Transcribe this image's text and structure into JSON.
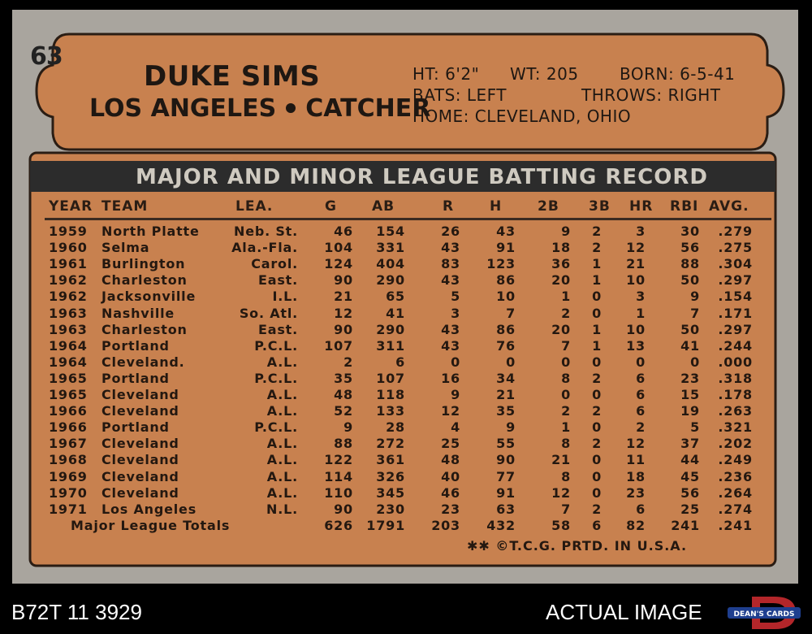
{
  "card": {
    "number": "63",
    "name": "DUKE SIMS",
    "team": "LOS ANGELES",
    "position": "CATCHER",
    "bio": {
      "ht": "HT: 6'2\"",
      "wt": "WT: 205",
      "born": "BORN: 6-5-41",
      "bats": "BATS: LEFT",
      "throws": "THROWS: RIGHT",
      "home": "HOME: CLEVELAND, OHIO"
    },
    "banner": "MAJOR AND MINOR LEAGUE BATTING RECORD",
    "columns": [
      "YEAR",
      "TEAM",
      "LEA.",
      "G",
      "AB",
      "R",
      "H",
      "2B",
      "3B",
      "HR",
      "RBI",
      "AVG."
    ],
    "rows": [
      [
        "1959",
        "North Platte",
        "Neb. St.",
        "46",
        "154",
        "26",
        "43",
        "9",
        "2",
        "3",
        "30",
        ".279"
      ],
      [
        "1960",
        "Selma",
        "Ala.-Fla.",
        "104",
        "331",
        "43",
        "91",
        "18",
        "2",
        "12",
        "56",
        ".275"
      ],
      [
        "1961",
        "Burlington",
        "Carol.",
        "124",
        "404",
        "83",
        "123",
        "36",
        "1",
        "21",
        "88",
        ".304"
      ],
      [
        "1962",
        "Charleston",
        "East.",
        "90",
        "290",
        "43",
        "86",
        "20",
        "1",
        "10",
        "50",
        ".297"
      ],
      [
        "1962",
        "Jacksonville",
        "I.L.",
        "21",
        "65",
        "5",
        "10",
        "1",
        "0",
        "3",
        "9",
        ".154"
      ],
      [
        "1963",
        "Nashville",
        "So. Atl.",
        "12",
        "41",
        "3",
        "7",
        "2",
        "0",
        "1",
        "7",
        ".171"
      ],
      [
        "1963",
        "Charleston",
        "East.",
        "90",
        "290",
        "43",
        "86",
        "20",
        "1",
        "10",
        "50",
        ".297"
      ],
      [
        "1964",
        "Portland",
        "P.C.L.",
        "107",
        "311",
        "43",
        "76",
        "7",
        "1",
        "13",
        "41",
        ".244"
      ],
      [
        "1964",
        "Cleveland.",
        "A.L.",
        "2",
        "6",
        "0",
        "0",
        "0",
        "0",
        "0",
        "0",
        ".000"
      ],
      [
        "1965",
        "Portland",
        "P.C.L.",
        "35",
        "107",
        "16",
        "34",
        "8",
        "2",
        "6",
        "23",
        ".318"
      ],
      [
        "1965",
        "Cleveland",
        "A.L.",
        "48",
        "118",
        "9",
        "21",
        "0",
        "0",
        "6",
        "15",
        ".178"
      ],
      [
        "1966",
        "Cleveland",
        "A.L.",
        "52",
        "133",
        "12",
        "35",
        "2",
        "2",
        "6",
        "19",
        ".263"
      ],
      [
        "1966",
        "Portland",
        "P.C.L.",
        "9",
        "28",
        "4",
        "9",
        "1",
        "0",
        "2",
        "5",
        ".321"
      ],
      [
        "1967",
        "Cleveland",
        "A.L.",
        "88",
        "272",
        "25",
        "55",
        "8",
        "2",
        "12",
        "37",
        ".202"
      ],
      [
        "1968",
        "Cleveland",
        "A.L.",
        "122",
        "361",
        "48",
        "90",
        "21",
        "0",
        "11",
        "44",
        ".249"
      ],
      [
        "1969",
        "Cleveland",
        "A.L.",
        "114",
        "326",
        "40",
        "77",
        "8",
        "0",
        "18",
        "45",
        ".236"
      ],
      [
        "1970",
        "Cleveland",
        "A.L.",
        "110",
        "345",
        "46",
        "91",
        "12",
        "0",
        "23",
        "56",
        ".264"
      ],
      [
        "1971",
        "Los Angeles",
        "N.L.",
        "90",
        "230",
        "23",
        "63",
        "7",
        "2",
        "6",
        "25",
        ".274"
      ]
    ],
    "totals": [
      "Major League Totals",
      "626",
      "1791",
      "203",
      "432",
      "58",
      "6",
      "82",
      "241",
      ".241"
    ],
    "footer": "✱✱ ©T.C.G. PRTD. IN U.S.A."
  },
  "caption": {
    "left": "B72T 11 3929",
    "right": "ACTUAL IMAGE",
    "logo": "DEAN'S CARDS"
  },
  "colors": {
    "card_gray": "#a9a59e",
    "card_orange": "#c8814f",
    "banner_dark": "#2c2c2c",
    "ink": "#1e1712"
  }
}
